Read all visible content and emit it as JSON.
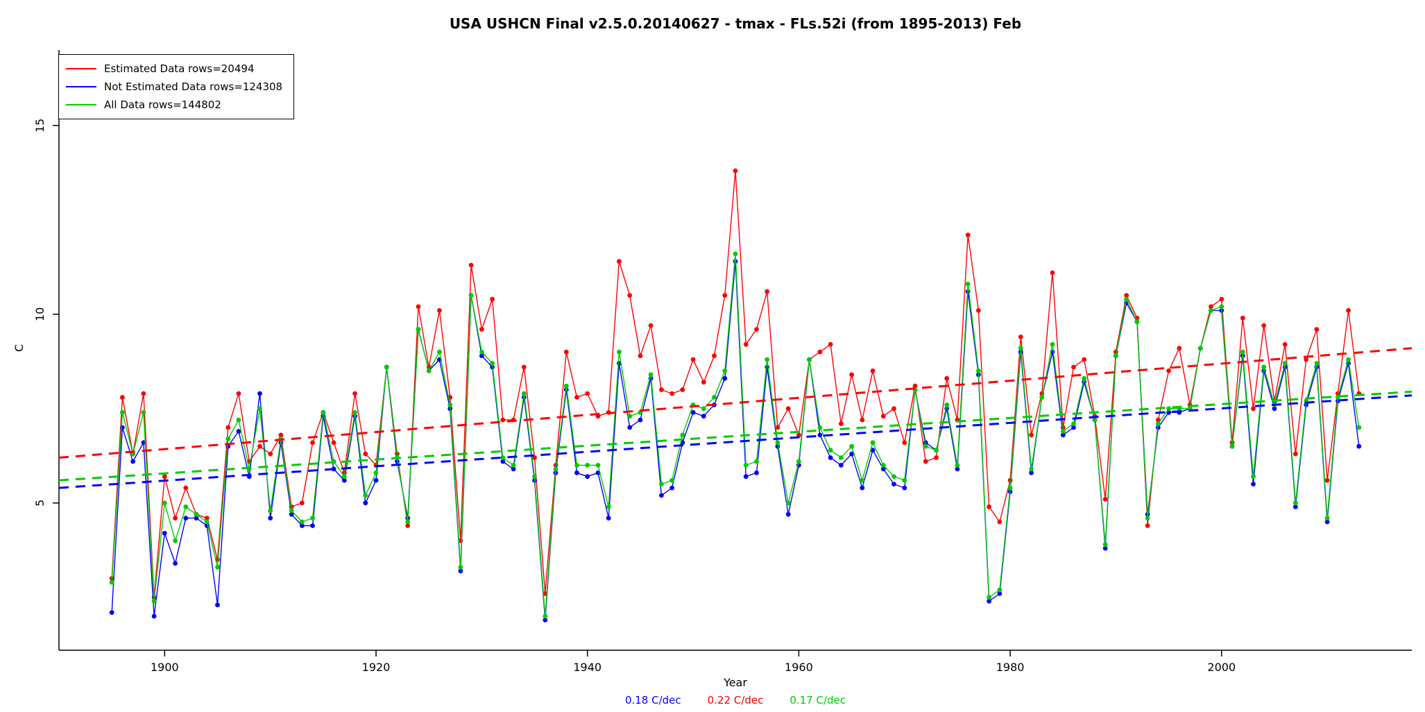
{
  "chart": {
    "title": "USA USHCN Final v2.5.0.20140627 - tmax - FLs.52i (from 1895-2013) Feb",
    "xlabel": "Year",
    "ylabel": "C",
    "legend": {
      "items": [
        {
          "label": "Estimated Data rows=20494",
          "color": "#FF0000"
        },
        {
          "label": "Not Estimated Data rows=124308",
          "color": "#0000FF"
        },
        {
          "label": "All Data rows=144802",
          "color": "#00CC00"
        }
      ]
    },
    "rates": [
      {
        "text": "0.18 C/dec",
        "color": "#0000FF"
      },
      {
        "text": "0.22 C/dec",
        "color": "#FF0000"
      },
      {
        "text": "0.17 C/dec",
        "color": "#00CC00"
      }
    ]
  },
  "chart_data": {
    "type": "line",
    "title": "USA USHCN Final v2.5.0.20140627 - tmax - FLs.52i (from 1895-2013) Feb",
    "xlabel": "Year",
    "ylabel": "C",
    "x_ticks": [
      1900,
      1920,
      1940,
      1960,
      1980,
      2000
    ],
    "y_ticks": [
      5,
      10,
      15
    ],
    "xlim": [
      1890,
      2018
    ],
    "ylim": [
      1.1,
      17.0
    ],
    "grid": false,
    "legend_position": "top-left",
    "year_start": 1895,
    "year_end": 2013,
    "series": [
      {
        "name": "Estimated Data rows=20494",
        "color": "#FF0000",
        "values": [
          3.0,
          7.8,
          6.3,
          7.9,
          2.5,
          5.7,
          4.6,
          5.4,
          4.7,
          4.6,
          3.5,
          7.0,
          7.9,
          6.1,
          6.5,
          6.3,
          6.8,
          4.9,
          5.0,
          6.6,
          7.4,
          6.6,
          5.8,
          7.9,
          6.3,
          6.0,
          8.6,
          6.3,
          4.4,
          10.2,
          8.6,
          10.1,
          7.8,
          4.0,
          11.3,
          9.6,
          10.4,
          7.2,
          7.2,
          8.6,
          6.2,
          2.6,
          6.0,
          9.0,
          7.8,
          7.9,
          7.3,
          7.4,
          11.4,
          10.5,
          8.9,
          9.7,
          8.0,
          7.9,
          8.0,
          8.8,
          8.2,
          8.9,
          10.5,
          13.8,
          9.2,
          9.6,
          10.6,
          7.0,
          7.5,
          6.8,
          8.8,
          9.0,
          9.2,
          7.1,
          8.4,
          7.2,
          8.5,
          7.3,
          7.5,
          6.6,
          8.1,
          6.1,
          6.2,
          8.3,
          7.2,
          12.1,
          10.1,
          4.9,
          4.5,
          5.6,
          9.4,
          6.8,
          7.9,
          11.1,
          7.0,
          8.6,
          8.8,
          7.3,
          5.1,
          9.0,
          10.5,
          9.9,
          4.4,
          7.2,
          8.5,
          9.1,
          7.6,
          9.1,
          10.2,
          10.4,
          6.6,
          9.9,
          7.5,
          9.7,
          7.7,
          9.2,
          6.3,
          8.8,
          9.6,
          5.6,
          7.9,
          10.1,
          7.9
        ]
      },
      {
        "name": "Not Estimated Data rows=124308",
        "color": "#0000FF",
        "values": [
          2.1,
          7.0,
          6.1,
          6.6,
          2.0,
          4.2,
          3.4,
          4.6,
          4.6,
          4.4,
          2.3,
          6.5,
          6.9,
          5.7,
          7.9,
          4.6,
          6.6,
          4.7,
          4.4,
          4.4,
          7.3,
          5.9,
          5.6,
          7.3,
          5.0,
          5.6,
          8.6,
          6.1,
          4.6,
          9.6,
          8.5,
          8.8,
          7.5,
          3.2,
          10.5,
          8.9,
          8.6,
          6.1,
          5.9,
          7.8,
          5.6,
          1.9,
          5.8,
          8.0,
          5.8,
          5.7,
          5.8,
          4.6,
          8.7,
          7.0,
          7.2,
          8.3,
          5.2,
          5.4,
          6.6,
          7.4,
          7.3,
          7.6,
          8.3,
          11.4,
          5.7,
          5.8,
          8.6,
          6.5,
          4.7,
          6.0,
          8.8,
          6.8,
          6.2,
          6.0,
          6.3,
          5.4,
          6.4,
          5.9,
          5.5,
          5.4,
          8.0,
          6.6,
          6.4,
          7.5,
          5.9,
          10.6,
          8.4,
          2.4,
          2.6,
          5.3,
          9.0,
          5.8,
          7.8,
          9.0,
          6.8,
          7.0,
          8.2,
          7.2,
          3.8,
          8.9,
          10.3,
          9.8,
          4.7,
          7.0,
          7.4,
          7.4,
          7.5,
          9.1,
          10.1,
          10.1,
          6.5,
          8.9,
          5.5,
          8.5,
          7.5,
          8.6,
          4.9,
          7.6,
          8.6,
          4.5,
          7.7,
          8.7,
          6.5
        ]
      },
      {
        "name": "All Data rows=144802",
        "color": "#00CC00",
        "values": [
          2.9,
          7.4,
          6.3,
          7.4,
          2.4,
          5.0,
          4.0,
          4.9,
          4.7,
          4.5,
          3.3,
          6.7,
          7.2,
          5.9,
          7.5,
          4.8,
          6.7,
          4.8,
          4.5,
          4.6,
          7.4,
          6.1,
          5.7,
          7.4,
          5.2,
          5.8,
          8.6,
          6.2,
          4.5,
          9.6,
          8.5,
          9.0,
          7.6,
          3.3,
          10.5,
          9.0,
          8.7,
          6.2,
          6.0,
          7.9,
          5.7,
          2.0,
          5.9,
          8.1,
          6.0,
          6.0,
          6.0,
          4.9,
          9.0,
          7.3,
          7.4,
          8.4,
          5.5,
          5.6,
          6.8,
          7.6,
          7.5,
          7.8,
          8.5,
          11.6,
          6.0,
          6.1,
          8.8,
          6.6,
          5.0,
          6.1,
          8.8,
          7.0,
          6.4,
          6.2,
          6.5,
          5.6,
          6.6,
          6.0,
          5.7,
          5.6,
          8.0,
          6.5,
          6.4,
          7.6,
          6.0,
          10.8,
          8.5,
          2.5,
          2.7,
          5.4,
          9.1,
          5.9,
          7.8,
          9.2,
          6.9,
          7.1,
          8.3,
          7.2,
          3.9,
          8.9,
          10.4,
          9.8,
          4.6,
          7.1,
          7.5,
          7.5,
          7.5,
          9.1,
          10.1,
          10.2,
          6.5,
          9.0,
          5.7,
          8.6,
          7.6,
          8.7,
          5.0,
          7.7,
          8.7,
          4.6,
          7.8,
          8.8,
          7.0
        ]
      }
    ],
    "trend_lines": [
      {
        "name": "Estimated trend",
        "color": "#FF0000",
        "rate_c_per_decade": 0.22,
        "x": [
          1890,
          2018
        ],
        "y": [
          6.2,
          9.1
        ]
      },
      {
        "name": "Not estimated trend",
        "color": "#0000FF",
        "rate_c_per_decade": 0.18,
        "x": [
          1890,
          2018
        ],
        "y": [
          5.4,
          7.85
        ]
      },
      {
        "name": "All trend",
        "color": "#00CC00",
        "rate_c_per_decade": 0.17,
        "x": [
          1890,
          2018
        ],
        "y": [
          5.6,
          7.95
        ]
      }
    ]
  }
}
